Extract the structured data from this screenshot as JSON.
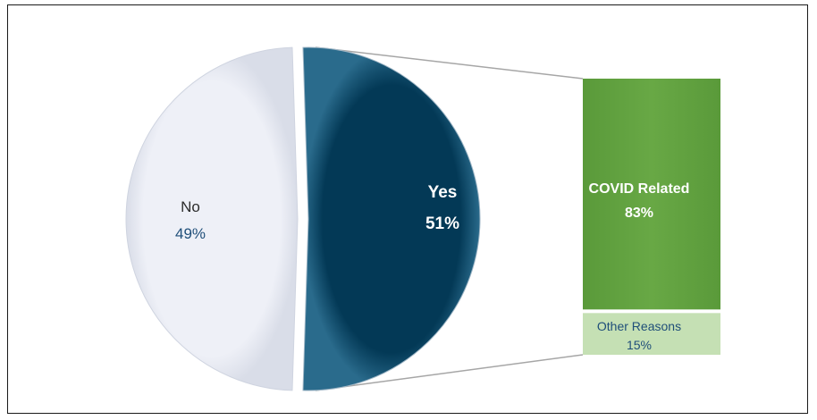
{
  "chart_data": {
    "type": "pie",
    "title": "",
    "slices": [
      {
        "label": "No",
        "value": 49,
        "display": "49%",
        "color": "#eef0f7"
      },
      {
        "label": "Yes",
        "value": 51,
        "display": "51%",
        "color": "#033956",
        "exploded": true
      }
    ],
    "breakdown": {
      "of": "Yes",
      "type": "stacked-bar",
      "segments": [
        {
          "label": "COVID Related",
          "value": 83,
          "display": "83%",
          "color": "#62a240"
        },
        {
          "label": "Other Reasons",
          "value": 15,
          "display": "15%",
          "color": "#c5e0b4"
        }
      ]
    },
    "colors": {
      "connector": "#a6a6a6",
      "no_text": "#2d2d2d",
      "no_value": "#1f4e79",
      "yes_text": "#ffffff",
      "covid_text": "#ffffff",
      "other_text": "#1f4e79"
    }
  }
}
